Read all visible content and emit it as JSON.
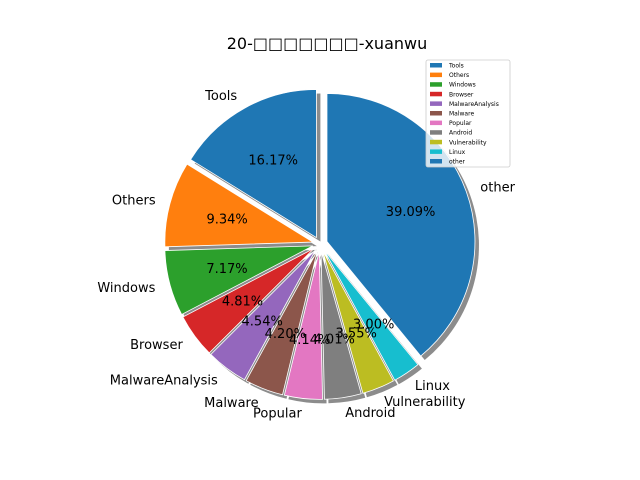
{
  "chart_data": {
    "type": "pie",
    "title": "20-□□□□□□□-xuanwu",
    "categories": [
      "Tools",
      "Others",
      "Windows",
      "Browser",
      "MalwareAnalysis",
      "Malware",
      "Popular",
      "Android",
      "Vulnerability",
      "Linux",
      "other"
    ],
    "values": [
      16.17,
      9.34,
      7.17,
      4.81,
      4.54,
      4.2,
      4.14,
      4.01,
      3.55,
      3.0,
      39.09
    ],
    "value_labels": [
      "16.17%",
      "9.34%",
      "7.17%",
      "4.81%",
      "4.54%",
      "4.20%",
      "4.14%",
      "4.01%",
      "3.55%",
      "3.00%",
      "39.09%"
    ],
    "colors": [
      "#1f77b4",
      "#ff7f0e",
      "#2ca02c",
      "#d62728",
      "#9467bd",
      "#8c564b",
      "#e377c2",
      "#7f7f7f",
      "#bcbd22",
      "#17becf",
      "#1f77b4"
    ],
    "start_angle_deg": 90,
    "direction": "counterclockwise",
    "shadow": true,
    "exploded": true,
    "legend": {
      "position": "top-right",
      "entries": [
        "Tools",
        "Others",
        "Windows",
        "Browser",
        "MalwareAnalysis",
        "Malware",
        "Popular",
        "Android",
        "Vulnerability",
        "Linux",
        "other"
      ]
    }
  }
}
